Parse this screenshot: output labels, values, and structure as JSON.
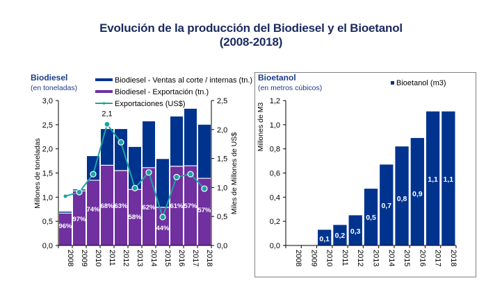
{
  "page": {
    "title_line1": "Evolución de la producción del Biodiesel y el Bioetanol",
    "title_line2": "(2008-2018)"
  },
  "colors": {
    "navy": "#00338e",
    "purple": "#7030a0",
    "teal": "#1ba3a3",
    "heading": "#1a3c8c"
  },
  "chart_data": [
    {
      "type": "bar",
      "stacked": true,
      "title": "Biodiesel",
      "subtitle": "(en toneladas)",
      "categories": [
        "2008",
        "2009",
        "2010",
        "2011",
        "2012",
        "2013",
        "2014",
        "2015",
        "2016",
        "2017",
        "2018"
      ],
      "series": [
        {
          "name": "Biodiesel - Exportación (tn.)",
          "type": "bar",
          "axis": "left",
          "values": [
            0.67,
            1.13,
            1.35,
            1.66,
            1.55,
            1.16,
            1.61,
            0.79,
            1.64,
            1.65,
            1.39
          ]
        },
        {
          "name": "Biodiesel - Ventas al corte / internas (tn.)",
          "type": "bar",
          "axis": "left",
          "values": [
            0.03,
            0.03,
            0.5,
            0.75,
            0.86,
            0.88,
            0.96,
            1.0,
            1.03,
            1.18,
            1.11
          ]
        },
        {
          "name": "Exportaciones (US$)",
          "type": "line",
          "axis": "right",
          "values": [
            0.85,
            0.92,
            1.23,
            2.09,
            1.78,
            0.99,
            1.26,
            0.49,
            1.18,
            1.23,
            0.98
          ]
        }
      ],
      "bar_labels": [
        "96%",
        "97%",
        "74%",
        "68%",
        "63%",
        "58%",
        "62%",
        "44%",
        "61%",
        "57%",
        "57%"
      ],
      "line_annotation": {
        "category": "2011",
        "text": "2,1"
      },
      "ylabel": "Millones de toneladas",
      "y2label": "Miles de Millones de US$",
      "ylim": [
        0,
        3.0
      ],
      "y2lim": [
        0,
        2.5
      ],
      "yticks": [
        "0,0",
        "0,5",
        "1,0",
        "1,5",
        "2,0",
        "2,5",
        "3,0"
      ],
      "y2ticks": [
        "0,0",
        "0,5",
        "1,0",
        "1,5",
        "2,0",
        "2,5"
      ],
      "legend_position": "top-center",
      "grid": false
    },
    {
      "type": "bar",
      "title": "Bioetanol",
      "subtitle": "(en metros cúbicos)",
      "categories": [
        "2008",
        "2009",
        "2010",
        "2011",
        "2012",
        "2013",
        "2014",
        "2015",
        "2016",
        "2017",
        "2018"
      ],
      "series": [
        {
          "name": "Bioetanol (m3)",
          "values": [
            0,
            0,
            0.13,
            0.17,
            0.25,
            0.47,
            0.67,
            0.82,
            0.89,
            1.11,
            1.11
          ]
        }
      ],
      "bar_labels": [
        "",
        "",
        "0,1",
        "0,2",
        "0,3",
        "0,5",
        "0,7",
        "0,8",
        "0,9",
        "1,1",
        "1,1"
      ],
      "ylabel": "Millones de M3",
      "ylim": [
        0,
        1.2
      ],
      "yticks": [
        "0,0",
        "0,2",
        "0,4",
        "0,6",
        "0,8",
        "1,0",
        "1,2"
      ],
      "legend_position": "top-right",
      "grid": false
    }
  ]
}
